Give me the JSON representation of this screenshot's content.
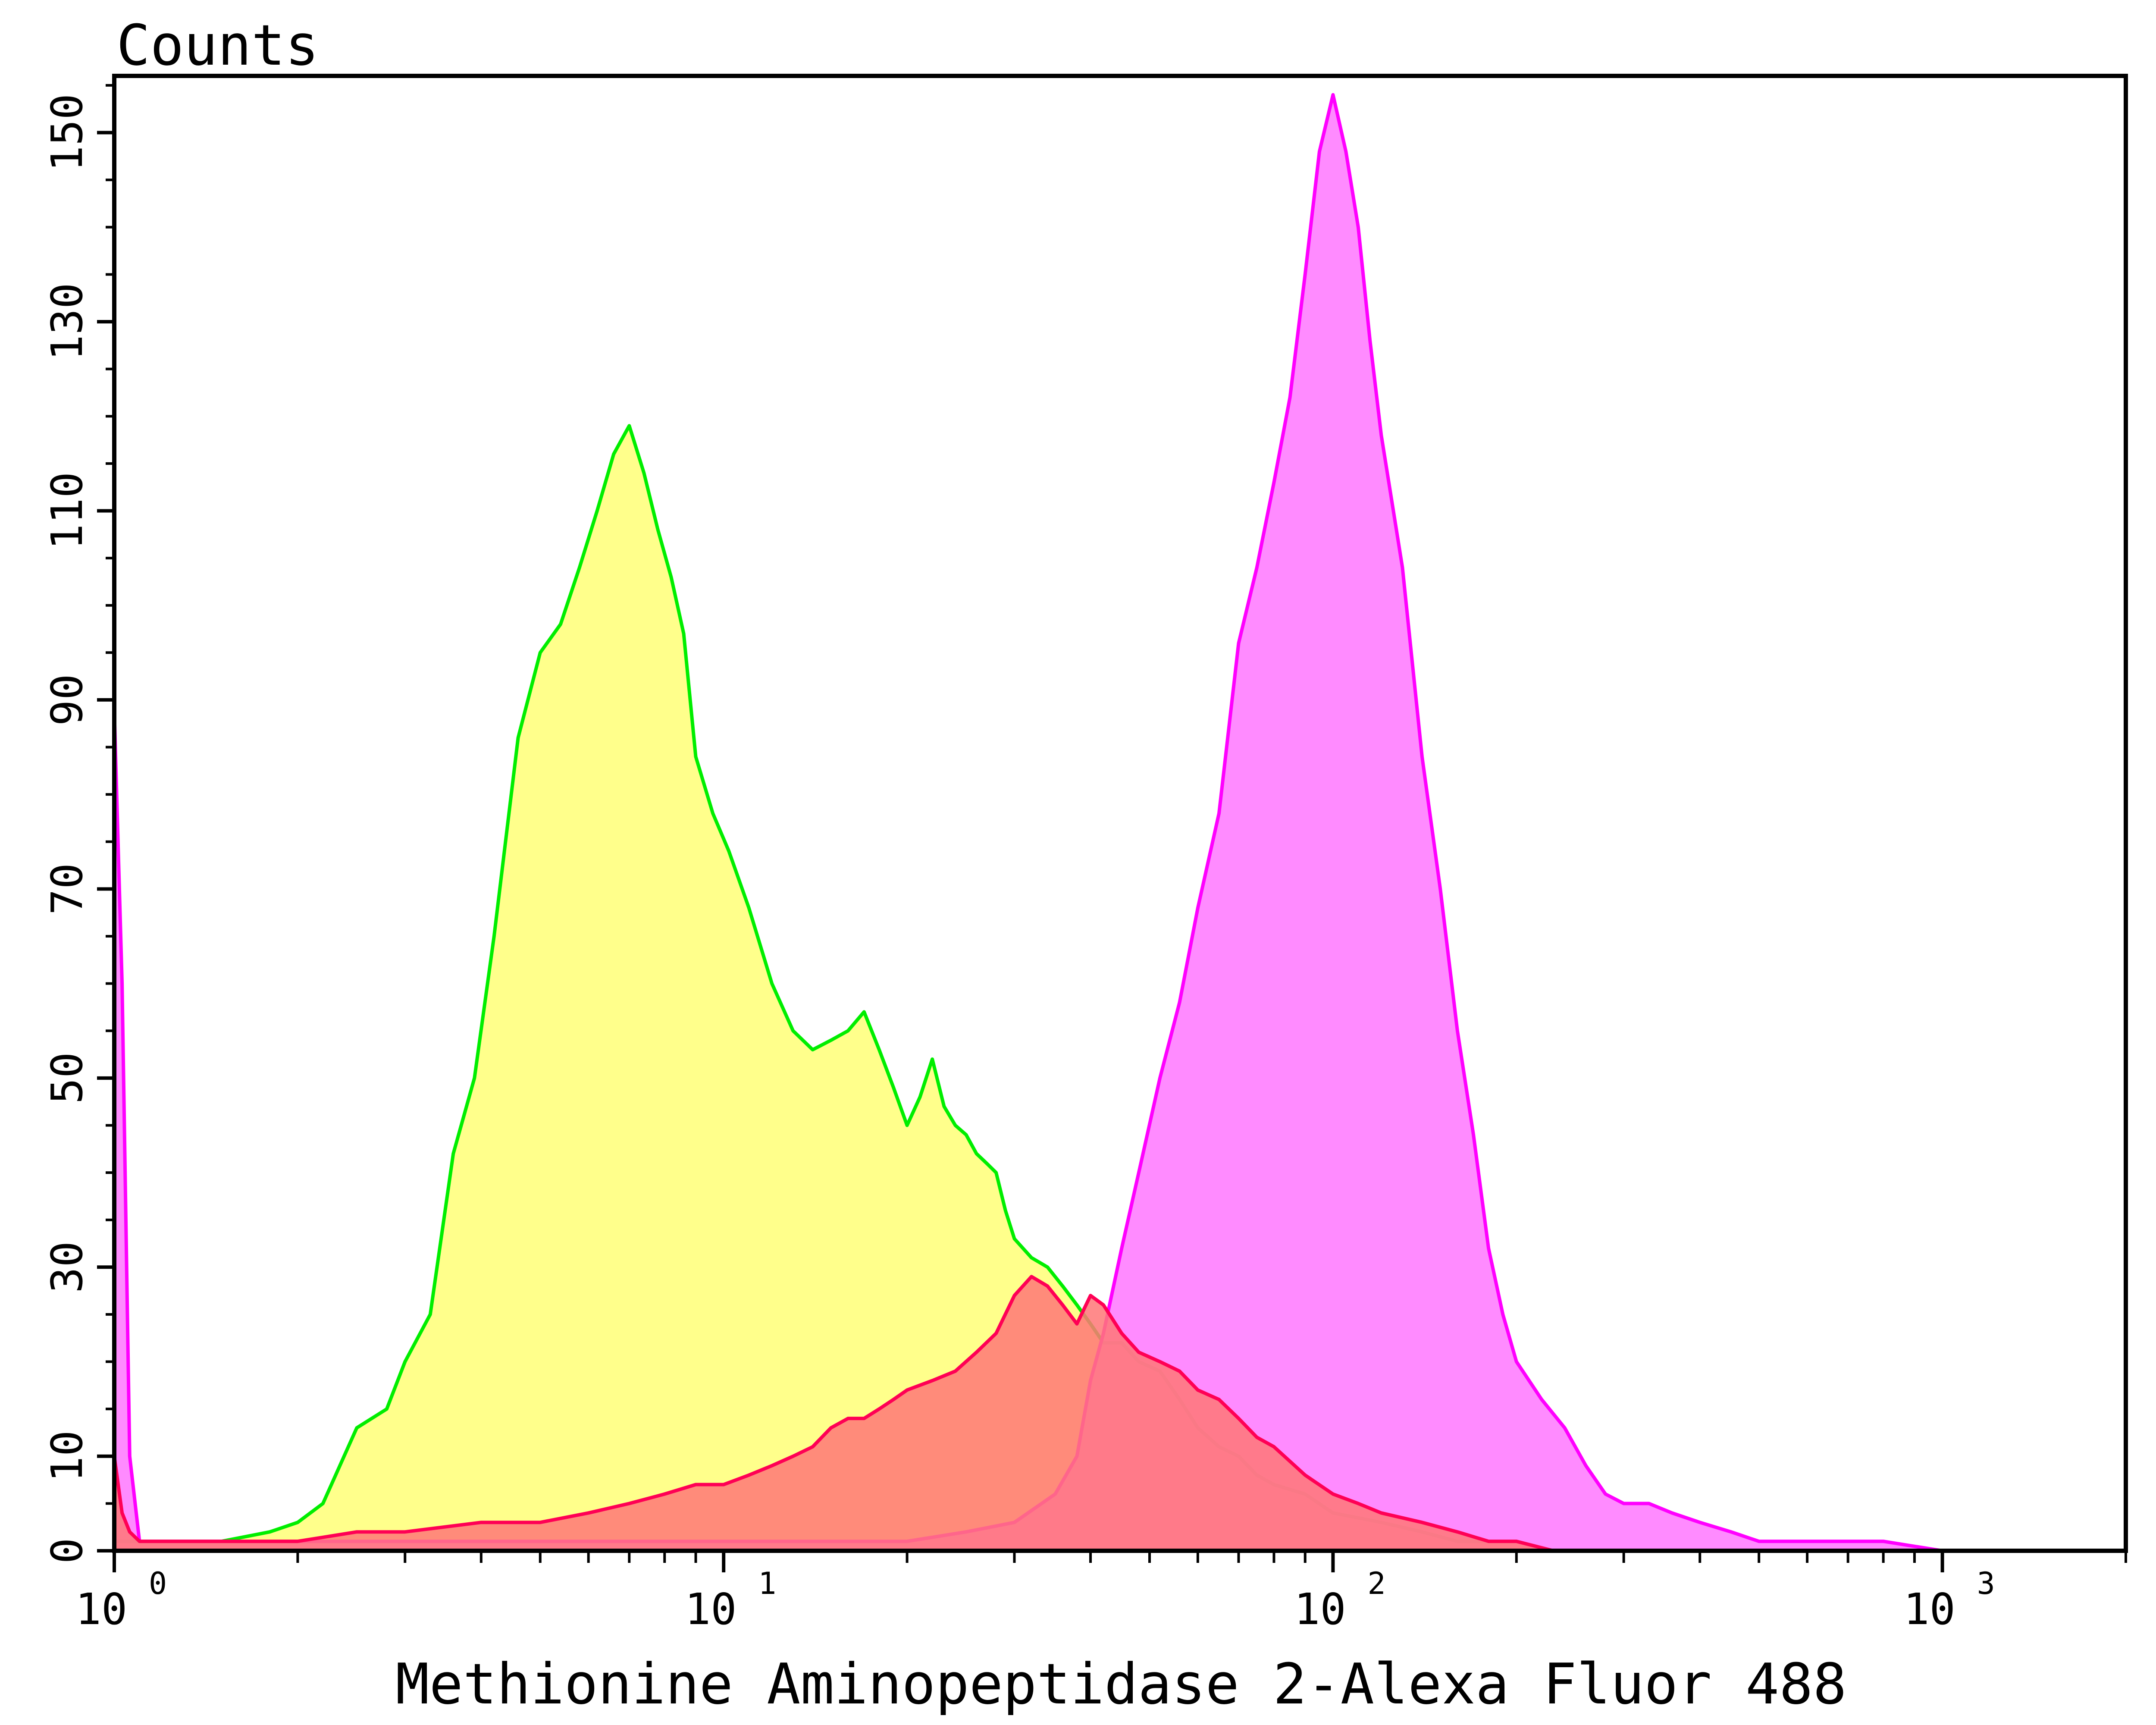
{
  "chart_data": {
    "type": "area",
    "title": "",
    "xlabel": "Methionine Aminopeptidase 2-Alexa Fluor 488",
    "ylabel": "Counts",
    "xscale": "log",
    "xlim": [
      1,
      2000
    ],
    "ylim": [
      0,
      156
    ],
    "x_ticks": [
      {
        "value": 1,
        "label": "10",
        "exp": "0"
      },
      {
        "value": 10,
        "label": "10",
        "exp": "1"
      },
      {
        "value": 100,
        "label": "10",
        "exp": "2"
      },
      {
        "value": 1000,
        "label": "10",
        "exp": "3"
      }
    ],
    "y_ticks": [
      {
        "value": 0,
        "label": "0"
      },
      {
        "value": 10,
        "label": "10"
      },
      {
        "value": 30,
        "label": "30"
      },
      {
        "value": 50,
        "label": "50"
      },
      {
        "value": 70,
        "label": "70"
      },
      {
        "value": 90,
        "label": "90"
      },
      {
        "value": 110,
        "label": "110"
      },
      {
        "value": 130,
        "label": "130"
      },
      {
        "value": 150,
        "label": "150"
      }
    ],
    "grid": false,
    "legend": "none",
    "series": [
      {
        "fill": "#ffff77",
        "stroke": "#00ee00",
        "x": [
          1,
          1.2,
          1.5,
          1.8,
          2.0,
          2.2,
          2.5,
          2.8,
          3.0,
          3.3,
          3.6,
          3.9,
          4.2,
          4.6,
          5.0,
          5.4,
          5.8,
          6.2,
          6.6,
          7.0,
          7.4,
          7.8,
          8.2,
          8.6,
          9.0,
          9.6,
          10.2,
          11,
          12,
          13,
          14,
          15,
          16,
          17,
          18,
          19,
          20,
          21,
          22,
          23,
          24,
          25,
          26,
          27,
          28,
          29,
          30,
          32,
          34,
          36,
          38,
          40,
          42,
          45,
          48,
          52,
          56,
          60,
          65,
          70,
          75,
          80,
          90,
          100,
          120,
          140,
          160,
          180,
          200,
          230
        ],
        "values": [
          1,
          1,
          1,
          2,
          3,
          5,
          13,
          15,
          20,
          25,
          42,
          50,
          65,
          86,
          95,
          98,
          104,
          110,
          116,
          119,
          114,
          108,
          103,
          97,
          84,
          78,
          74,
          68,
          60,
          55,
          53,
          54,
          55,
          57,
          53,
          49,
          45,
          48,
          52,
          47,
          45,
          44,
          42,
          41,
          40,
          36,
          33,
          31,
          30,
          28,
          26,
          24,
          22,
          22,
          20,
          19,
          16,
          13,
          11,
          10,
          8,
          7,
          6,
          4,
          3,
          2,
          1,
          1,
          1,
          0
        ]
      },
      {
        "fill": "#ff77ff",
        "stroke": "#ff00ff",
        "x": [
          1,
          1.03,
          1.06,
          1.1,
          1.5,
          2,
          5,
          10,
          15,
          20,
          25,
          30,
          35,
          38,
          40,
          42,
          45,
          48,
          52,
          56,
          60,
          65,
          70,
          75,
          80,
          85,
          90,
          95,
          100,
          105,
          110,
          115,
          120,
          130,
          140,
          150,
          160,
          170,
          180,
          190,
          200,
          220,
          240,
          260,
          280,
          300,
          330,
          360,
          400,
          450,
          500,
          600,
          700,
          800,
          1000,
          1100
        ],
        "values": [
          89,
          60,
          10,
          1,
          1,
          1,
          1,
          1,
          1,
          1,
          2,
          3,
          6,
          10,
          18,
          23,
          32,
          40,
          50,
          58,
          68,
          78,
          96,
          104,
          113,
          122,
          135,
          148,
          154,
          148,
          140,
          128,
          118,
          104,
          84,
          70,
          55,
          44,
          32,
          25,
          20,
          16,
          13,
          9,
          6,
          5,
          5,
          4,
          3,
          2,
          1,
          1,
          1,
          1,
          0,
          0
        ]
      },
      {
        "fill": "#ff7777",
        "stroke": "#ff0055",
        "x": [
          1,
          1.03,
          1.06,
          1.1,
          1.5,
          2,
          2.5,
          3,
          4,
          5,
          6,
          7,
          8,
          9,
          10,
          11,
          12,
          13,
          14,
          15,
          16,
          17,
          18,
          19,
          20,
          22,
          24,
          26,
          28,
          30,
          32,
          34,
          36,
          38,
          40,
          42,
          45,
          48,
          52,
          56,
          60,
          65,
          70,
          75,
          80,
          90,
          100,
          110,
          120,
          140,
          160,
          180,
          200,
          230
        ],
        "values": [
          10,
          4,
          2,
          1,
          1,
          1,
          2,
          2,
          3,
          3,
          4,
          5,
          6,
          7,
          7,
          8,
          9,
          10,
          11,
          13,
          14,
          14,
          15,
          16,
          17,
          18,
          19,
          21,
          23,
          27,
          29,
          28,
          26,
          24,
          27,
          26,
          23,
          21,
          20,
          19,
          17,
          16,
          14,
          12,
          11,
          8,
          6,
          5,
          4,
          3,
          2,
          1,
          1,
          0
        ]
      }
    ]
  }
}
